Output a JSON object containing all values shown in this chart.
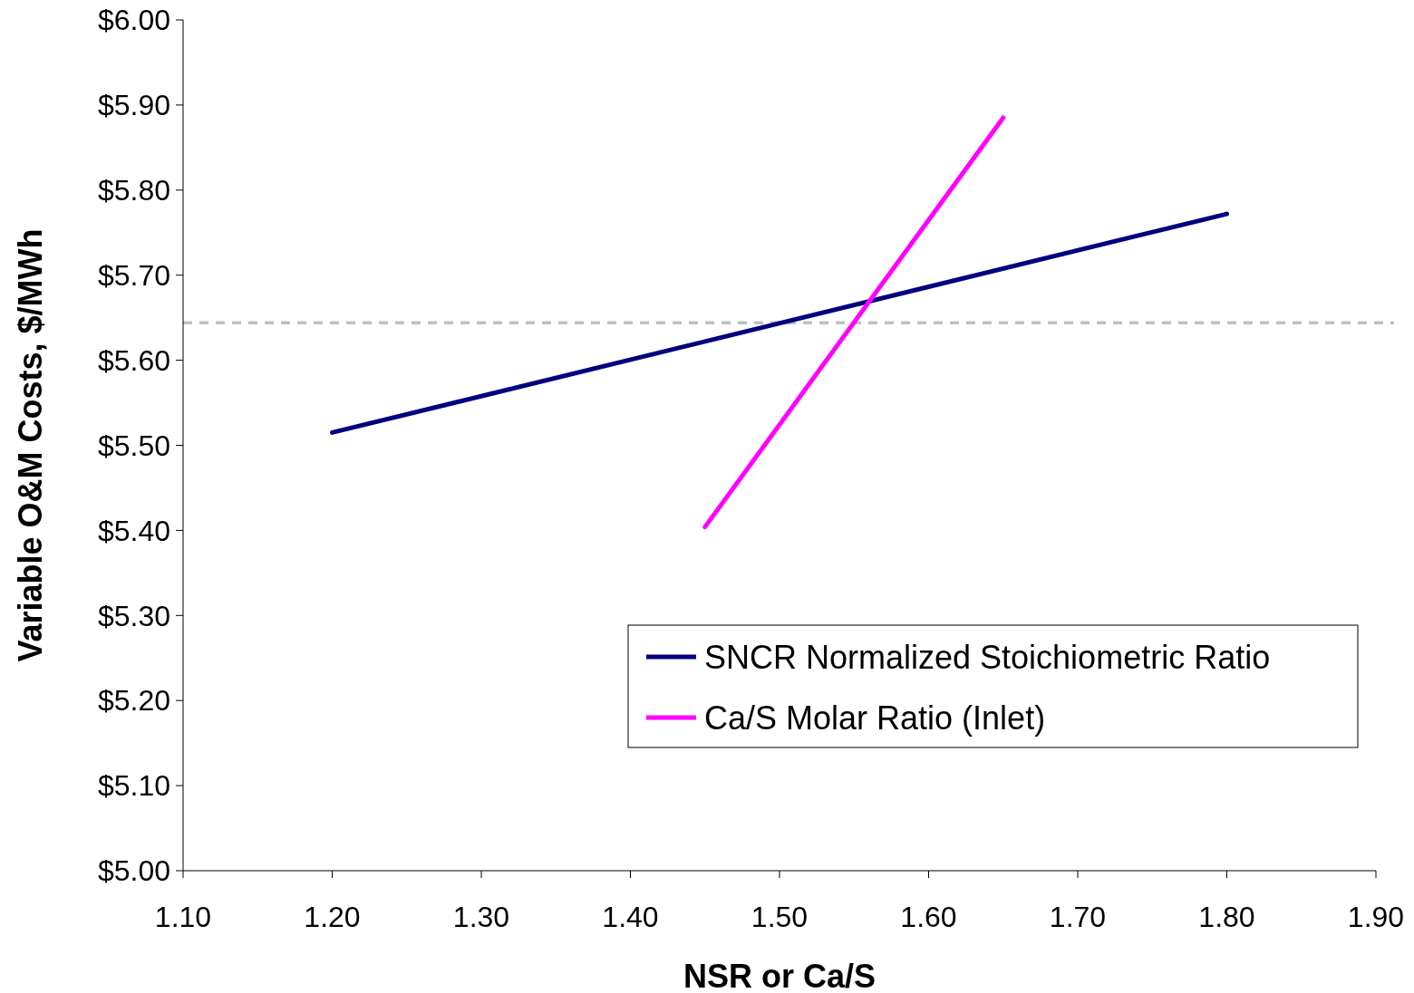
{
  "chart_data": {
    "type": "line",
    "xlabel": "NSR or Ca/S",
    "ylabel": "Variable O&M Costs, $/MWh",
    "xlim": [
      1.1,
      1.9
    ],
    "xticks": [
      {
        "value": 1.1,
        "label": "1.10"
      },
      {
        "value": 1.2,
        "label": "1.20"
      },
      {
        "value": 1.3,
        "label": "1.30"
      },
      {
        "value": 1.4,
        "label": "1.40"
      },
      {
        "value": 1.5,
        "label": "1.50"
      },
      {
        "value": 1.6,
        "label": "1.60"
      },
      {
        "value": 1.7,
        "label": "1.70"
      },
      {
        "value": 1.8,
        "label": "1.80"
      },
      {
        "value": 1.9,
        "label": "1.90"
      }
    ],
    "ylim": [
      5.0,
      6.0
    ],
    "yticks": [
      {
        "value": 5.0,
        "label": "$5.00"
      },
      {
        "value": 5.1,
        "label": "$5.10"
      },
      {
        "value": 5.2,
        "label": "$5.20"
      },
      {
        "value": 5.3,
        "label": "$5.30"
      },
      {
        "value": 5.4,
        "label": "$5.40"
      },
      {
        "value": 5.5,
        "label": "$5.50"
      },
      {
        "value": 5.6,
        "label": "$5.60"
      },
      {
        "value": 5.7,
        "label": "$5.70"
      },
      {
        "value": 5.8,
        "label": "$5.80"
      },
      {
        "value": 5.9,
        "label": "$5.90"
      },
      {
        "value": 6.0,
        "label": "$6.00"
      }
    ],
    "series": [
      {
        "name": "SNCR Normalized Stoichiometric Ratio",
        "color": "#000080",
        "x": [
          1.2,
          1.8
        ],
        "values": [
          5.515,
          5.772
        ]
      },
      {
        "name": "Ca/S Molar Ratio (Inlet)",
        "color": "#ff00ff",
        "x": [
          1.45,
          1.65
        ],
        "values": [
          5.404,
          5.885
        ]
      }
    ],
    "ref_lines": [
      {
        "axis": "y",
        "value": 5.644,
        "color": "#c0c0c0",
        "line_style": "dashed"
      }
    ],
    "grid": false,
    "legend": "bottom right",
    "marker": "none",
    "line_style": "solid"
  }
}
